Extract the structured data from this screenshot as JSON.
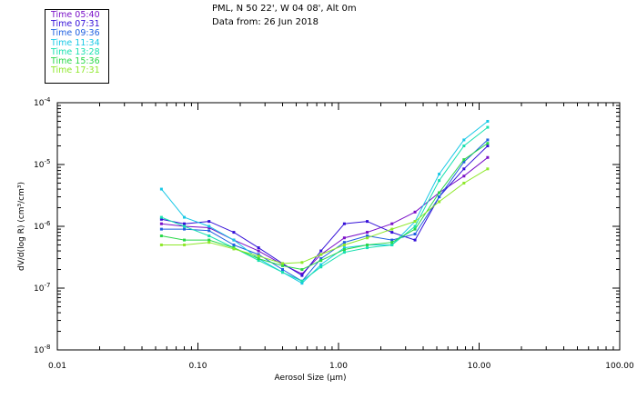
{
  "header": {
    "line1": "PML, N 50 22', W 04 08', Alt 0m",
    "line2": "Data from: 26 Jun 2018"
  },
  "legend": [
    {
      "label": "Time 05:40",
      "color": "#7a10c8"
    },
    {
      "label": "Time 07:31",
      "color": "#3410d8"
    },
    {
      "label": "Time 09:36",
      "color": "#2060e0"
    },
    {
      "label": "Time 11:34",
      "color": "#18c8e6"
    },
    {
      "label": "Time 13:28",
      "color": "#18e0b0"
    },
    {
      "label": "Time 15:36",
      "color": "#28d848"
    },
    {
      "label": "Time 17:31",
      "color": "#8ee82a"
    }
  ],
  "chart_data": {
    "type": "line",
    "title": "PML, N 50 22', W 04 08', Alt 0m",
    "xlabel": "Aerosol Size (μm)",
    "ylabel": "dV/d(log R) (cm³/cm³)",
    "xscale": "log",
    "yscale": "log",
    "xlim": [
      0.01,
      100
    ],
    "ylim": [
      1e-08,
      0.0001
    ],
    "xticks": [
      {
        "value": 0.01,
        "label": "0.01"
      },
      {
        "value": 0.1,
        "label": "0.10"
      },
      {
        "value": 1,
        "label": "1.00"
      },
      {
        "value": 10,
        "label": "10.00"
      },
      {
        "value": 100,
        "label": "100.00"
      }
    ],
    "yticks": [
      {
        "value": 1e-08,
        "base": "10",
        "exp": "-8"
      },
      {
        "value": 1e-07,
        "base": "10",
        "exp": "-7"
      },
      {
        "value": 1e-06,
        "base": "10",
        "exp": "-6"
      },
      {
        "value": 1e-05,
        "base": "10",
        "exp": "-5"
      },
      {
        "value": 0.0001,
        "base": "10",
        "exp": "-4"
      }
    ],
    "x": [
      0.055,
      0.08,
      0.12,
      0.18,
      0.27,
      0.4,
      0.55,
      0.75,
      1.1,
      1.6,
      2.4,
      3.5,
      5.2,
      7.8,
      11.5
    ],
    "series": [
      {
        "name": "Time 05:40",
        "color": "#7a10c8",
        "values": [
          1.1e-06,
          1e-06,
          9.5e-07,
          6e-07,
          4e-07,
          2.4e-07,
          1.7e-07,
          3.5e-07,
          6.5e-07,
          8e-07,
          1.1e-06,
          1.7e-06,
          3.5e-06,
          6.5e-06,
          1.3e-05
        ]
      },
      {
        "name": "Time 07:31",
        "color": "#3410d8",
        "values": [
          1.3e-06,
          1.1e-06,
          1.2e-06,
          8e-07,
          4.5e-07,
          2.5e-07,
          1.6e-07,
          4e-07,
          1.1e-06,
          1.2e-06,
          8e-07,
          6e-07,
          3e-06,
          8.5e-06,
          2e-05
        ]
      },
      {
        "name": "Time 09:36",
        "color": "#2060e0",
        "values": [
          9e-07,
          9e-07,
          8.5e-07,
          5e-07,
          3.5e-07,
          2e-07,
          1.3e-07,
          3e-07,
          5.5e-07,
          7e-07,
          6e-07,
          7.5e-07,
          3e-06,
          1.1e-05,
          2.5e-05
        ]
      },
      {
        "name": "Time 11:34",
        "color": "#18c8e6",
        "values": [
          4e-06,
          1.4e-06,
          1e-06,
          6e-07,
          3e-07,
          1.8e-07,
          1.2e-07,
          2.4e-07,
          4.5e-07,
          5e-07,
          5e-07,
          1.2e-06,
          7e-06,
          2.5e-05,
          5e-05
        ]
      },
      {
        "name": "Time 13:28",
        "color": "#18e0b0",
        "values": [
          1.4e-06,
          1e-06,
          7e-07,
          4.5e-07,
          2.8e-07,
          1.8e-07,
          1.3e-07,
          2.2e-07,
          3.8e-07,
          4.5e-07,
          5e-07,
          1e-06,
          5.5e-06,
          2e-05,
          4e-05
        ]
      },
      {
        "name": "Time 15:36",
        "color": "#28d848",
        "values": [
          7e-07,
          6e-07,
          6e-07,
          4.5e-07,
          3e-07,
          2.3e-07,
          2e-07,
          2.8e-07,
          4.2e-07,
          5e-07,
          5.5e-07,
          9e-07,
          3.5e-06,
          1.2e-05,
          2.2e-05
        ]
      },
      {
        "name": "Time 17:31",
        "color": "#8ee82a",
        "values": [
          5e-07,
          5e-07,
          5.5e-07,
          4.3e-07,
          3.3e-07,
          2.5e-07,
          2.6e-07,
          3.5e-07,
          5e-07,
          6.5e-07,
          9e-07,
          1.2e-06,
          2.5e-06,
          5e-06,
          8.5e-06
        ]
      }
    ]
  }
}
